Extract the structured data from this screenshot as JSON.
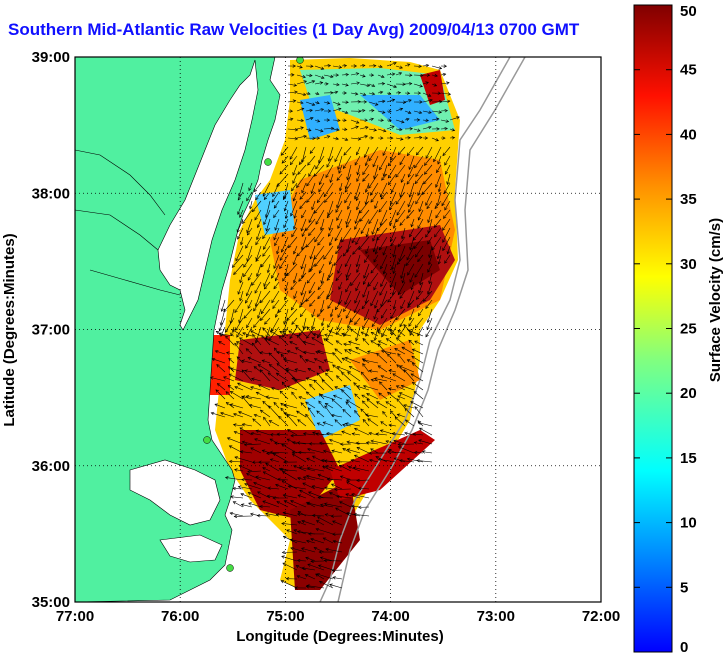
{
  "title": "Southern Mid-Atlantic Raw Velocities (1 Day Avg) 2009/04/13 0700 GMT",
  "title_color": "#1010ff",
  "map": {
    "x_axis_label": "Longitude (Degrees:Minutes)",
    "y_axis_label": "Latitude (Degrees:Minutes)",
    "lon_ticks": [
      "77:00",
      "76:00",
      "75:00",
      "74:00",
      "73:00",
      "72:00"
    ],
    "lat_ticks": [
      "39:00",
      "38:00",
      "37:00",
      "36:00",
      "35:00"
    ],
    "lon_range": [
      -77,
      -72
    ],
    "lat_range": [
      35,
      39
    ],
    "grid": "dotted",
    "land_color": "#50f0a0",
    "station_color": "#44dd44"
  },
  "colorbar": {
    "label": "Surface Velocity (cm/s)",
    "ticks": [
      "0",
      "5",
      "10",
      "15",
      "20",
      "25",
      "30",
      "35",
      "40",
      "45",
      "50"
    ],
    "range": [
      0,
      50
    ],
    "colormap": "jet"
  }
}
